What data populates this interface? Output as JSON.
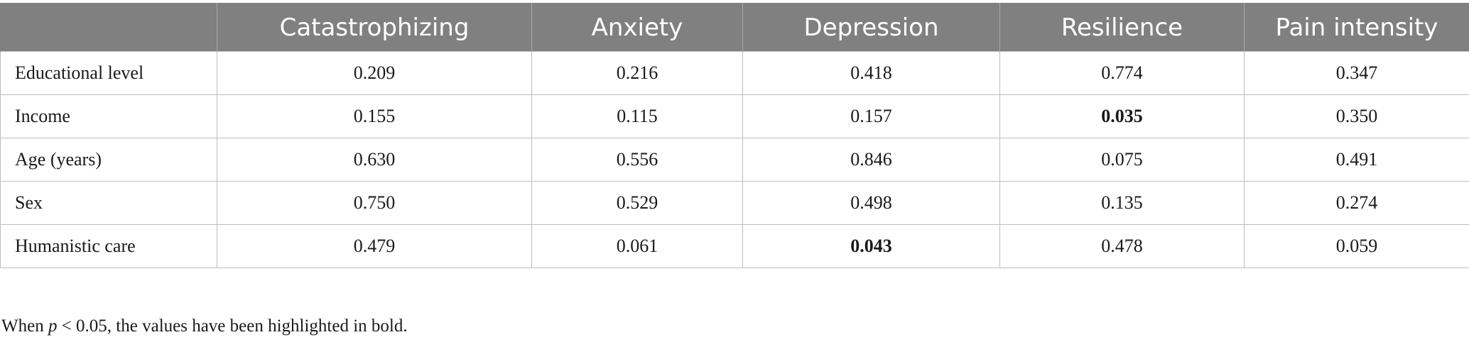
{
  "table": {
    "headers": [
      "",
      "Catastrophizing",
      "Anxiety",
      "Depression",
      "Resilience",
      "Pain intensity"
    ],
    "rows": [
      {
        "label": "Educational level",
        "values": [
          "0.209",
          "0.216",
          "0.418",
          "0.774",
          "0.347"
        ]
      },
      {
        "label": "Income",
        "values": [
          "0.155",
          "0.115",
          "0.157",
          "0.035",
          "0.350"
        ]
      },
      {
        "label": "Age (years)",
        "values": [
          "0.630",
          "0.556",
          "0.846",
          "0.075",
          "0.491"
        ]
      },
      {
        "label": "Sex",
        "values": [
          "0.750",
          "0.529",
          "0.498",
          "0.135",
          "0.274"
        ]
      },
      {
        "label": "Humanistic care",
        "values": [
          "0.479",
          "0.061",
          "0.043",
          "0.478",
          "0.059"
        ]
      }
    ]
  },
  "footnote": {
    "prefix": "When ",
    "variable": "p",
    "suffix": " < 0.05, the values have been highlighted in bold."
  }
}
